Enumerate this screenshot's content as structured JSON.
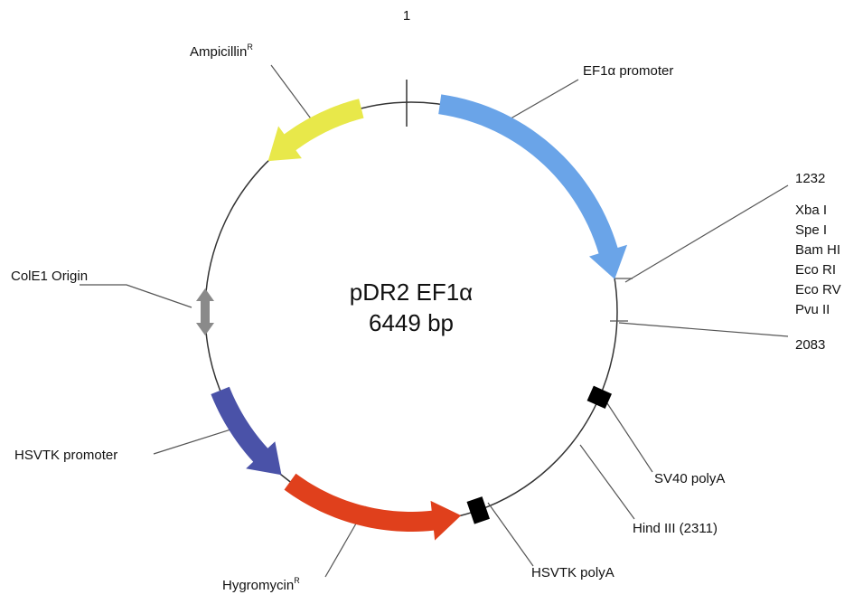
{
  "plasmid": {
    "name": "pDR2 EF1α",
    "size": "6449 bp"
  },
  "position_start": "1",
  "features": {
    "ampicillin": {
      "label": "Ampicillin",
      "superscript": "R"
    },
    "ef1a_promoter": {
      "label": "EF1α promoter"
    },
    "cole1": {
      "label": "ColE1 Origin"
    },
    "hsvtk_promoter": {
      "label": "HSVTK promoter"
    },
    "hygromycin": {
      "label": "Hygromycin",
      "superscript": "R"
    },
    "hsvtk_polya": {
      "label": "HSVTK polyA"
    },
    "sv40_polya": {
      "label": "SV40 polyA"
    },
    "hind3": {
      "label": "Hind III (2311)"
    }
  },
  "mcs": {
    "start": "1232",
    "sites": [
      "Xba I",
      "Spe I",
      "Bam HI",
      "Eco RI",
      "Eco RV",
      "Pvu II"
    ],
    "end": "2083"
  }
}
